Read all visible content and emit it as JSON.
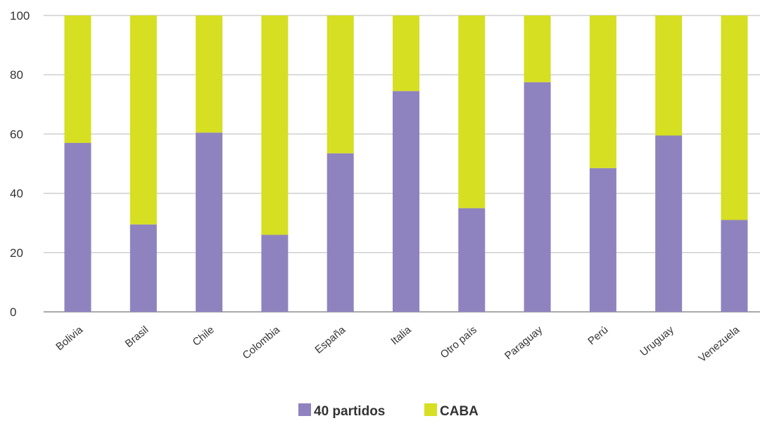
{
  "colors": {
    "40 partidos": "#8f83bf",
    "CABA": "#d6df22",
    "grid": "#cfcfcf"
  },
  "chart_data": {
    "type": "bar",
    "stacked": true,
    "categories": [
      "Bolivia",
      "Brasil",
      "Chile",
      "Colombia",
      "España",
      "Italia",
      "Otro país",
      "Paraguay",
      "Perú",
      "Uruguay",
      "Venezuela"
    ],
    "series": [
      {
        "name": "40 partidos",
        "values": [
          57,
          29.5,
          60.5,
          26,
          53.5,
          74.5,
          35,
          77.5,
          48.5,
          59.5,
          31
        ]
      },
      {
        "name": "CABA",
        "values": [
          43,
          70.5,
          39.5,
          74,
          46.5,
          25.5,
          65,
          22.5,
          51.5,
          40.5,
          69
        ]
      }
    ],
    "ylim": [
      0,
      100
    ],
    "yticks": [
      0,
      20,
      40,
      60,
      80,
      100
    ],
    "grid": true,
    "legend_position": "bottom-center",
    "title": "",
    "xlabel": "",
    "ylabel": ""
  }
}
